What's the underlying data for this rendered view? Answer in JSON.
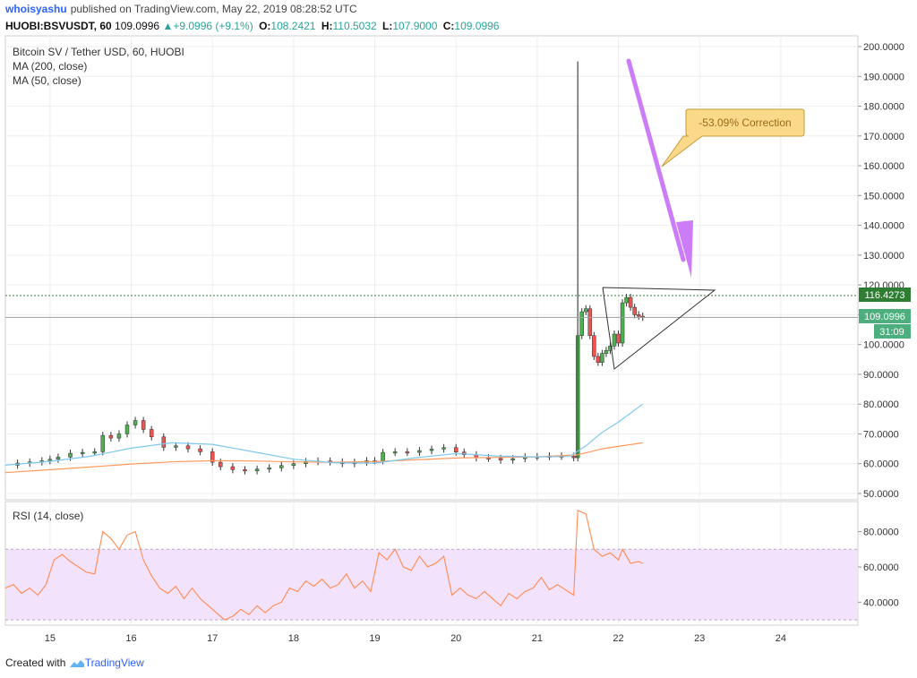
{
  "header": {
    "author": "whoisyashu",
    "published": "published on TradingView.com, May 22, 2019 08:28:52 UTC"
  },
  "quote": {
    "symbol": "HUOBI:BSVUSDT, 60",
    "last": "109.0996",
    "change": "+9.0996 (+9.1%)",
    "o_label": "O:",
    "o": "108.2421",
    "h_label": "H:",
    "h": "110.5032",
    "l_label": "L:",
    "l": "107.9000",
    "c_label": "C:",
    "c": "109.0996"
  },
  "legend": {
    "title": "Bitcoin SV / Tether USD, 60, HUOBI",
    "ma200": "MA (200, close)",
    "ma50": "MA (50, close)",
    "rsi": "RSI (14, close)"
  },
  "annotation": {
    "text": "-53.09% Correction"
  },
  "price_labels": {
    "high_line": "116.4273",
    "last": "109.0996",
    "countdown": "31:09"
  },
  "footer": {
    "created_with": "Created with",
    "brand": "TradingView"
  },
  "colors": {
    "up": "#26a69a",
    "down": "#ef5350",
    "candle_body_up": "#4caf50",
    "ma200": "#ff9a5c",
    "ma50": "#7ec8f0",
    "rsi_line": "#ff8a50",
    "rsi_band": "#f3e2fb",
    "arrow": "#cc7cf7",
    "callout": "#fbd98a",
    "high_line": "#2e7d32"
  },
  "chart_data": [
    {
      "type": "candlestick",
      "title": "Bitcoin SV / Tether USD, 60, HUOBI",
      "x_ticks": [
        "15",
        "16",
        "17",
        "18",
        "19",
        "20",
        "21",
        "22",
        "23",
        "24"
      ],
      "y_ticks": [
        "50.0000",
        "60.0000",
        "70.0000",
        "80.0000",
        "90.0000",
        "100.0000",
        "110.0000",
        "120.0000",
        "130.0000",
        "140.0000",
        "150.0000",
        "160.0000",
        "170.0000",
        "180.0000",
        "190.0000",
        "200.0000"
      ],
      "ylim": [
        50,
        200
      ],
      "xlim": [
        14.45,
        24.95
      ],
      "grid": true,
      "price_series": [
        [
          14.45,
          59.5
        ],
        [
          14.6,
          60.2
        ],
        [
          14.75,
          60.6
        ],
        [
          14.9,
          61.0
        ],
        [
          15.0,
          61.5
        ],
        [
          15.1,
          62.2
        ],
        [
          15.25,
          63.5
        ],
        [
          15.4,
          63.8
        ],
        [
          15.55,
          64.0
        ],
        [
          15.65,
          69.5
        ],
        [
          15.75,
          68.6
        ],
        [
          15.85,
          70.0
        ],
        [
          15.95,
          73.0
        ],
        [
          16.05,
          74.5
        ],
        [
          16.15,
          71.5
        ],
        [
          16.25,
          69.0
        ],
        [
          16.4,
          65.5
        ],
        [
          16.55,
          66.0
        ],
        [
          16.7,
          65.0
        ],
        [
          16.85,
          64.0
        ],
        [
          17.0,
          60.5
        ],
        [
          17.1,
          59.0
        ],
        [
          17.25,
          58.0
        ],
        [
          17.4,
          57.6
        ],
        [
          17.55,
          58.2
        ],
        [
          17.7,
          58.6
        ],
        [
          17.85,
          59.4
        ],
        [
          18.0,
          60.0
        ],
        [
          18.15,
          60.7
        ],
        [
          18.3,
          60.9
        ],
        [
          18.45,
          60.6
        ],
        [
          18.6,
          60.0
        ],
        [
          18.75,
          60.5
        ],
        [
          18.9,
          61.0
        ],
        [
          19.0,
          61.0
        ],
        [
          19.1,
          63.8
        ],
        [
          19.25,
          64.0
        ],
        [
          19.4,
          63.8
        ],
        [
          19.55,
          64.4
        ],
        [
          19.7,
          64.9
        ],
        [
          19.85,
          65.4
        ],
        [
          20.0,
          63.9
        ],
        [
          20.1,
          63.0
        ],
        [
          20.25,
          62.0
        ],
        [
          20.4,
          61.8
        ],
        [
          20.55,
          61.2
        ],
        [
          20.7,
          61.7
        ],
        [
          20.85,
          62.3
        ],
        [
          21.0,
          62.4
        ],
        [
          21.15,
          62.6
        ],
        [
          21.3,
          62.5
        ],
        [
          21.45,
          62.0
        ],
        [
          21.5,
          103.0
        ],
        [
          21.55,
          111.0
        ],
        [
          21.6,
          112.0
        ],
        [
          21.65,
          103.0
        ],
        [
          21.7,
          96.0
        ],
        [
          21.75,
          94.0
        ],
        [
          21.8,
          97.0
        ],
        [
          21.85,
          98.0
        ],
        [
          21.9,
          99.5
        ],
        [
          21.95,
          103.5
        ],
        [
          22.0,
          100.5
        ],
        [
          22.05,
          114.0
        ],
        [
          22.1,
          115.8
        ],
        [
          22.15,
          112.5
        ],
        [
          22.2,
          110.0
        ],
        [
          22.25,
          109.5
        ],
        [
          22.3,
          109.1
        ]
      ],
      "spike_high": 195.0,
      "ma50": [
        [
          14.45,
          59.5
        ],
        [
          15.0,
          60.8
        ],
        [
          15.5,
          62.5
        ],
        [
          16.0,
          65.2
        ],
        [
          16.5,
          67.0
        ],
        [
          17.0,
          66.5
        ],
        [
          17.5,
          64.0
        ],
        [
          18.0,
          61.5
        ],
        [
          18.5,
          60.3
        ],
        [
          19.0,
          60.2
        ],
        [
          19.5,
          62.0
        ],
        [
          20.0,
          63.4
        ],
        [
          20.5,
          62.6
        ],
        [
          21.0,
          62.3
        ],
        [
          21.4,
          62.4
        ],
        [
          21.6,
          66.0
        ],
        [
          21.8,
          70.5
        ],
        [
          22.0,
          74.0
        ],
        [
          22.3,
          80.0
        ]
      ],
      "ma200": [
        [
          14.45,
          57.0
        ],
        [
          15.0,
          58.0
        ],
        [
          15.5,
          58.9
        ],
        [
          16.0,
          59.9
        ],
        [
          16.5,
          60.6
        ],
        [
          17.0,
          61.0
        ],
        [
          17.5,
          60.9
        ],
        [
          18.0,
          60.6
        ],
        [
          18.5,
          60.5
        ],
        [
          19.0,
          60.7
        ],
        [
          19.5,
          61.3
        ],
        [
          20.0,
          61.9
        ],
        [
          20.5,
          62.1
        ],
        [
          21.0,
          62.3
        ],
        [
          21.5,
          63.0
        ],
        [
          21.8,
          65.0
        ],
        [
          22.0,
          65.8
        ],
        [
          22.3,
          67.0
        ]
      ],
      "last_price": 109.0996,
      "high_line": 116.4273
    },
    {
      "type": "line",
      "title": "RSI (14, close)",
      "y_ticks": [
        "40.0000",
        "60.0000",
        "80.0000"
      ],
      "ylim": [
        27,
        97
      ],
      "band": [
        30,
        70
      ],
      "values": [
        [
          14.45,
          48
        ],
        [
          14.55,
          50
        ],
        [
          14.65,
          45
        ],
        [
          14.75,
          48
        ],
        [
          14.85,
          44
        ],
        [
          14.95,
          50
        ],
        [
          15.05,
          64
        ],
        [
          15.15,
          67
        ],
        [
          15.25,
          63
        ],
        [
          15.35,
          60
        ],
        [
          15.45,
          57
        ],
        [
          15.55,
          56
        ],
        [
          15.65,
          80
        ],
        [
          15.75,
          76
        ],
        [
          15.85,
          70
        ],
        [
          15.95,
          78
        ],
        [
          16.05,
          80
        ],
        [
          16.15,
          64
        ],
        [
          16.25,
          55
        ],
        [
          16.35,
          48
        ],
        [
          16.45,
          45
        ],
        [
          16.55,
          49
        ],
        [
          16.65,
          42
        ],
        [
          16.75,
          48
        ],
        [
          16.85,
          42
        ],
        [
          16.95,
          38
        ],
        [
          17.05,
          34
        ],
        [
          17.15,
          30
        ],
        [
          17.25,
          32
        ],
        [
          17.35,
          36
        ],
        [
          17.45,
          33
        ],
        [
          17.55,
          38
        ],
        [
          17.65,
          34
        ],
        [
          17.75,
          38
        ],
        [
          17.85,
          40
        ],
        [
          17.95,
          48
        ],
        [
          18.05,
          46
        ],
        [
          18.15,
          52
        ],
        [
          18.25,
          49
        ],
        [
          18.35,
          53
        ],
        [
          18.45,
          48
        ],
        [
          18.55,
          50
        ],
        [
          18.65,
          56
        ],
        [
          18.75,
          48
        ],
        [
          18.85,
          52
        ],
        [
          18.95,
          46
        ],
        [
          19.05,
          68
        ],
        [
          19.15,
          64
        ],
        [
          19.25,
          70
        ],
        [
          19.35,
          60
        ],
        [
          19.45,
          58
        ],
        [
          19.55,
          66
        ],
        [
          19.65,
          60
        ],
        [
          19.75,
          62
        ],
        [
          19.85,
          66
        ],
        [
          19.95,
          44
        ],
        [
          20.05,
          48
        ],
        [
          20.15,
          44
        ],
        [
          20.25,
          42
        ],
        [
          20.35,
          46
        ],
        [
          20.45,
          42
        ],
        [
          20.55,
          38
        ],
        [
          20.65,
          45
        ],
        [
          20.75,
          42
        ],
        [
          20.85,
          46
        ],
        [
          20.95,
          48
        ],
        [
          21.05,
          54
        ],
        [
          21.15,
          47
        ],
        [
          21.25,
          50
        ],
        [
          21.35,
          47
        ],
        [
          21.45,
          44
        ],
        [
          21.5,
          92
        ],
        [
          21.6,
          90
        ],
        [
          21.7,
          70
        ],
        [
          21.8,
          66
        ],
        [
          21.9,
          68
        ],
        [
          22.0,
          64
        ],
        [
          22.05,
          70
        ],
        [
          22.15,
          62
        ],
        [
          22.25,
          63
        ],
        [
          22.3,
          62
        ]
      ]
    }
  ]
}
